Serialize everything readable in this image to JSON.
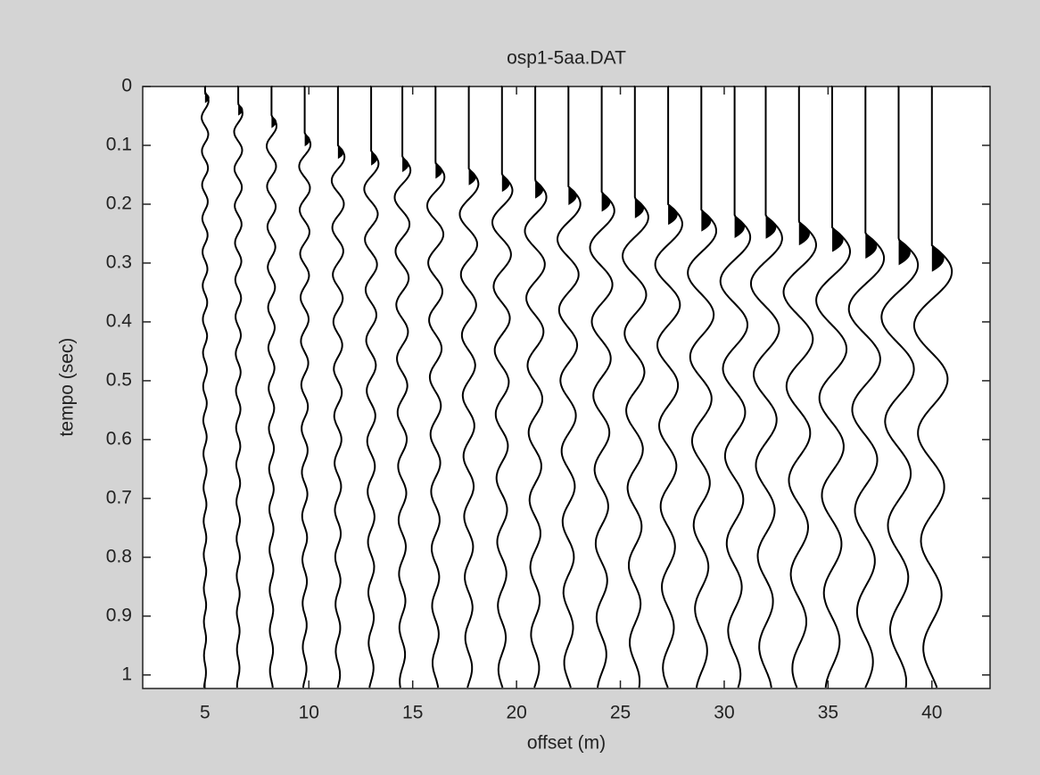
{
  "chart_data": {
    "type": "wiggle",
    "title": "osp1-5aa.DAT",
    "x_label": "offset (m)",
    "y_label": "tempo (sec)",
    "x": [
      5,
      6.6,
      8.2,
      9.8,
      11.4,
      13,
      14.5,
      16.1,
      17.7,
      19.3,
      20.9,
      22.5,
      24.1,
      25.7,
      27.3,
      28.9,
      30.5,
      32,
      33.6,
      35.2,
      36.8,
      38.4,
      40
    ],
    "arrival": [
      0.01,
      0.03,
      0.05,
      0.08,
      0.1,
      0.11,
      0.12,
      0.13,
      0.14,
      0.15,
      0.16,
      0.17,
      0.18,
      0.19,
      0.2,
      0.21,
      0.22,
      0.22,
      0.23,
      0.24,
      0.25,
      0.26,
      0.27
    ],
    "color": "#000000",
    "xlim": [
      2,
      42.8
    ],
    "ylim": [
      0,
      1.023
    ],
    "y_inverted": true,
    "xticks": [
      5,
      10,
      15,
      20,
      25,
      30,
      35,
      40
    ],
    "yticks": [
      0,
      0.1,
      0.2,
      0.3,
      0.4,
      0.5,
      0.6,
      0.7,
      0.8,
      0.9,
      1
    ]
  }
}
